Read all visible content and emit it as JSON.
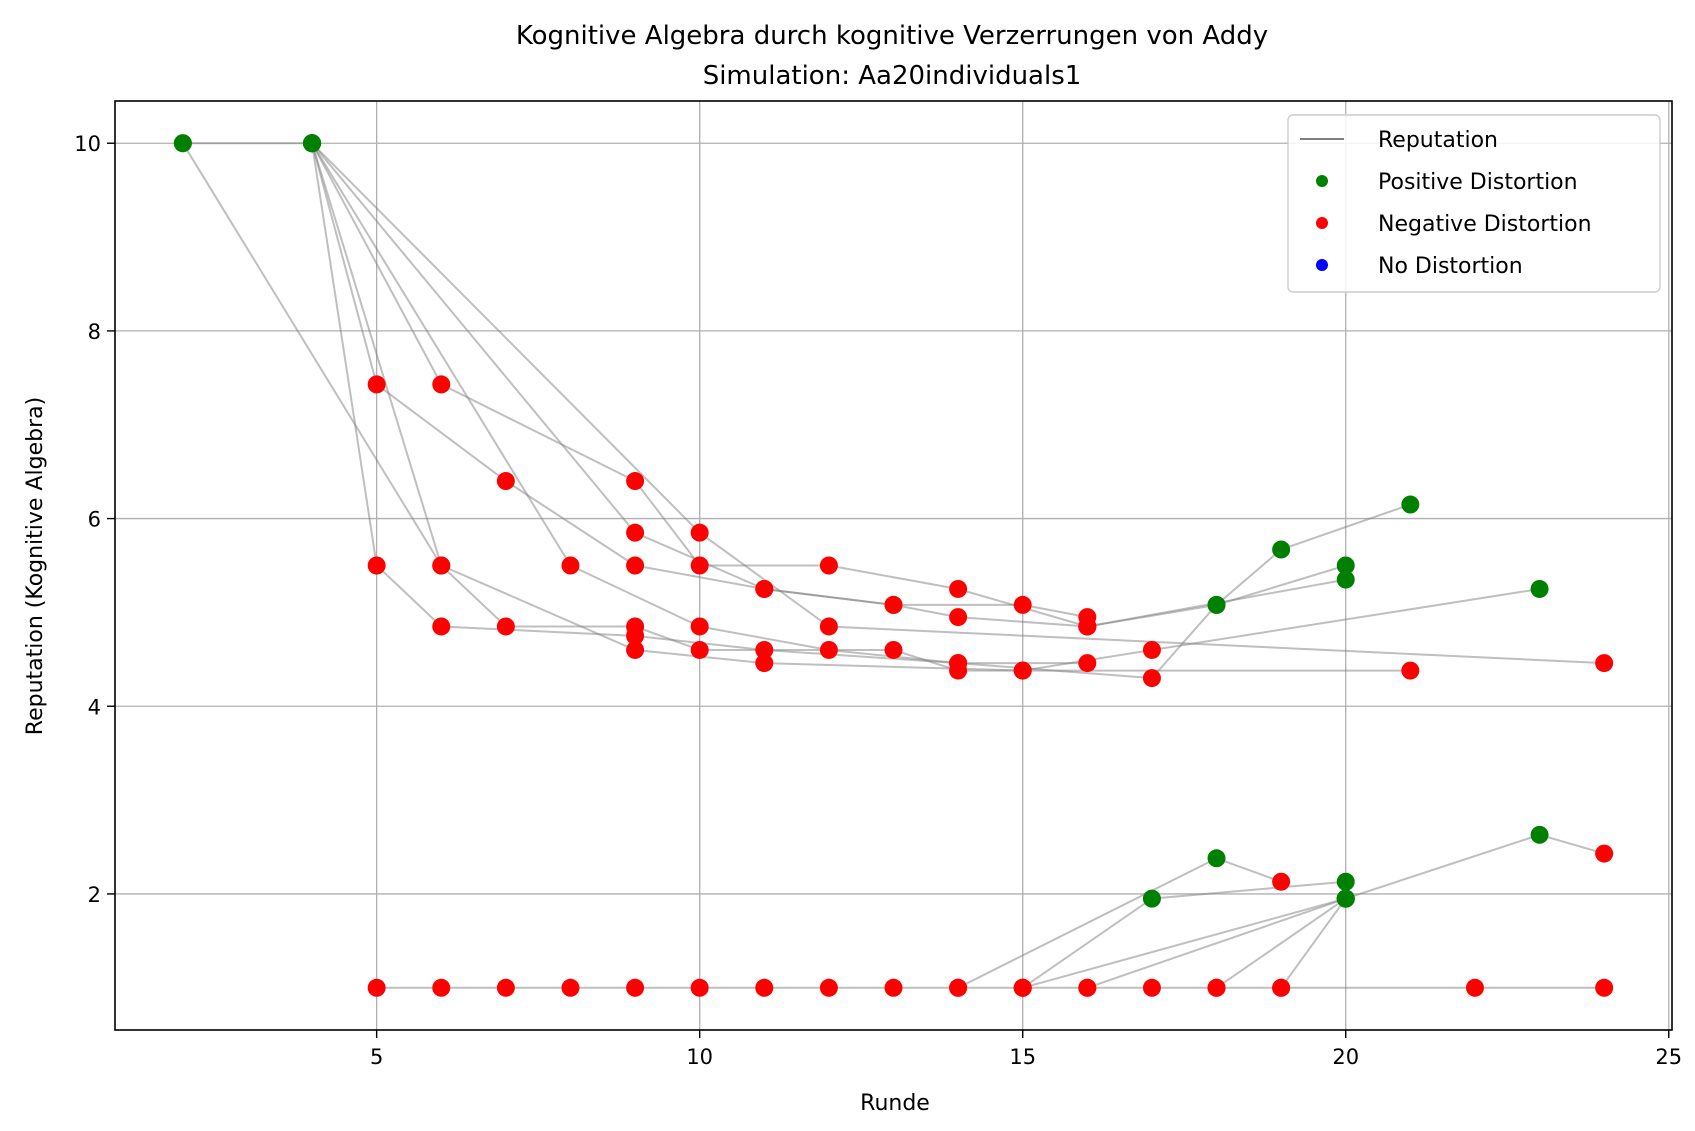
{
  "chart_data": {
    "type": "line",
    "title": "Kognitive Algebra durch kognitive Verzerrungen von Addy",
    "subtitle": "Simulation: Aa20individuals1",
    "xlabel": "Runde",
    "ylabel": "Reputation (Kognitive Algebra)",
    "xlim": [
      0.95,
      25.05
    ],
    "ylim": [
      0.55,
      10.45
    ],
    "xticks": [
      5,
      10,
      15,
      20,
      25
    ],
    "yticks": [
      2,
      4,
      6,
      8,
      10
    ],
    "grid": true,
    "legend": {
      "placement": "top-right",
      "entries": [
        {
          "label": "Reputation",
          "kind": "line",
          "color": "#808080"
        },
        {
          "label": "Positive Distortion",
          "kind": "marker",
          "color": "#008000"
        },
        {
          "label": "Negative Distortion",
          "kind": "marker",
          "color": "#ff0000"
        },
        {
          "label": "No Distortion",
          "kind": "marker",
          "color": "#0000ff"
        }
      ]
    },
    "colors": {
      "positive": "#008000",
      "negative": "#ff0000",
      "none": "#0000ff",
      "line": "#808080"
    },
    "series": [
      {
        "points": [
          [
            2,
            10,
            "p"
          ],
          [
            4,
            10,
            "p"
          ]
        ]
      },
      {
        "points": [
          [
            4,
            10,
            "p"
          ],
          [
            5,
            7.43,
            "n"
          ],
          [
            7,
            6.4,
            "n"
          ],
          [
            9,
            5.5,
            "n"
          ],
          [
            11,
            5.25,
            "n"
          ],
          [
            13,
            5.08,
            "n"
          ],
          [
            15,
            5.08,
            "n"
          ],
          [
            16,
            4.95,
            "n"
          ],
          [
            16,
            4.85,
            "n"
          ],
          [
            18,
            5.08,
            "p"
          ],
          [
            20,
            5.5,
            "p"
          ]
        ]
      },
      {
        "points": [
          [
            4,
            10,
            "p"
          ],
          [
            5,
            5.5,
            "n"
          ],
          [
            6,
            4.85,
            "n"
          ],
          [
            9,
            4.75,
            "n"
          ],
          [
            11,
            4.6,
            "n"
          ],
          [
            14,
            4.46,
            "n"
          ],
          [
            17,
            4.3,
            "n"
          ],
          [
            18,
            5.08,
            "p"
          ],
          [
            19,
            5.67,
            "p"
          ],
          [
            21,
            6.15,
            "p"
          ]
        ]
      },
      {
        "points": [
          [
            4,
            10,
            "p"
          ],
          [
            6,
            7.43,
            "n"
          ],
          [
            9,
            6.4,
            "n"
          ],
          [
            10,
            5.5,
            "n"
          ],
          [
            12,
            5.5,
            "n"
          ],
          [
            14,
            5.25,
            "n"
          ],
          [
            16,
            4.85,
            "n"
          ],
          [
            20,
            5.35,
            "p"
          ]
        ]
      },
      {
        "points": [
          [
            4,
            10,
            "p"
          ],
          [
            6,
            5.5,
            "n"
          ],
          [
            7,
            4.85,
            "n"
          ],
          [
            9,
            4.85,
            "n"
          ],
          [
            10,
            4.6,
            "n"
          ],
          [
            13,
            4.6,
            "n"
          ],
          [
            14,
            4.38,
            "n"
          ],
          [
            15,
            4.38,
            "n"
          ],
          [
            21,
            4.38,
            "n"
          ]
        ]
      },
      {
        "points": [
          [
            2,
            10,
            "p"
          ],
          [
            6,
            5.5,
            "n"
          ],
          [
            9,
            4.6,
            "n"
          ],
          [
            11,
            4.46,
            "n"
          ],
          [
            15,
            4.38,
            "n"
          ],
          [
            17,
            4.6,
            "n"
          ],
          [
            23,
            5.25,
            "p"
          ]
        ]
      },
      {
        "points": [
          [
            4,
            10,
            "p"
          ],
          [
            8,
            5.5,
            "n"
          ],
          [
            10,
            4.85,
            "n"
          ],
          [
            12,
            4.6,
            "n"
          ],
          [
            14,
            4.46,
            "n"
          ],
          [
            16,
            4.46,
            "n"
          ]
        ]
      },
      {
        "points": [
          [
            4,
            10,
            "p"
          ],
          [
            10,
            5.85,
            "n"
          ],
          [
            12,
            4.85,
            "n"
          ],
          [
            24,
            4.46,
            "n"
          ]
        ]
      },
      {
        "points": [
          [
            4,
            10,
            "p"
          ],
          [
            9,
            5.85,
            "n"
          ],
          [
            11,
            5.25,
            "n"
          ],
          [
            13,
            5.08,
            "n"
          ],
          [
            14,
            4.95,
            "n"
          ],
          [
            16,
            4.85,
            "n"
          ]
        ]
      },
      {
        "points": [
          [
            5,
            1,
            "n"
          ],
          [
            6,
            1,
            "n"
          ],
          [
            7,
            1,
            "n"
          ],
          [
            8,
            1,
            "n"
          ],
          [
            9,
            1,
            "n"
          ],
          [
            10,
            1,
            "n"
          ],
          [
            11,
            1,
            "n"
          ],
          [
            12,
            1,
            "n"
          ],
          [
            13,
            1,
            "n"
          ],
          [
            14,
            1,
            "n"
          ],
          [
            15,
            1,
            "n"
          ],
          [
            16,
            1,
            "n"
          ],
          [
            17,
            1,
            "n"
          ],
          [
            18,
            1,
            "n"
          ],
          [
            19,
            1,
            "n"
          ],
          [
            22,
            1,
            "n"
          ],
          [
            24,
            1,
            "n"
          ]
        ]
      },
      {
        "points": [
          [
            14,
            1,
            "n"
          ],
          [
            18,
            2.38,
            "p"
          ],
          [
            19,
            2.13,
            "n"
          ]
        ]
      },
      {
        "points": [
          [
            15,
            1,
            "n"
          ],
          [
            17,
            1.95,
            "p"
          ],
          [
            20,
            2.13,
            "p"
          ]
        ]
      },
      {
        "points": [
          [
            16,
            1,
            "n"
          ],
          [
            20,
            1.95,
            "p"
          ]
        ]
      },
      {
        "points": [
          [
            18,
            1,
            "n"
          ],
          [
            20,
            1.95,
            "p"
          ]
        ]
      },
      {
        "points": [
          [
            19,
            1,
            "n"
          ],
          [
            20,
            1.95,
            "p"
          ],
          [
            23,
            2.63,
            "p"
          ],
          [
            24,
            2.43,
            "n"
          ]
        ]
      },
      {
        "points": [
          [
            15,
            1,
            "n"
          ],
          [
            20,
            1.95,
            "p"
          ]
        ]
      }
    ]
  }
}
